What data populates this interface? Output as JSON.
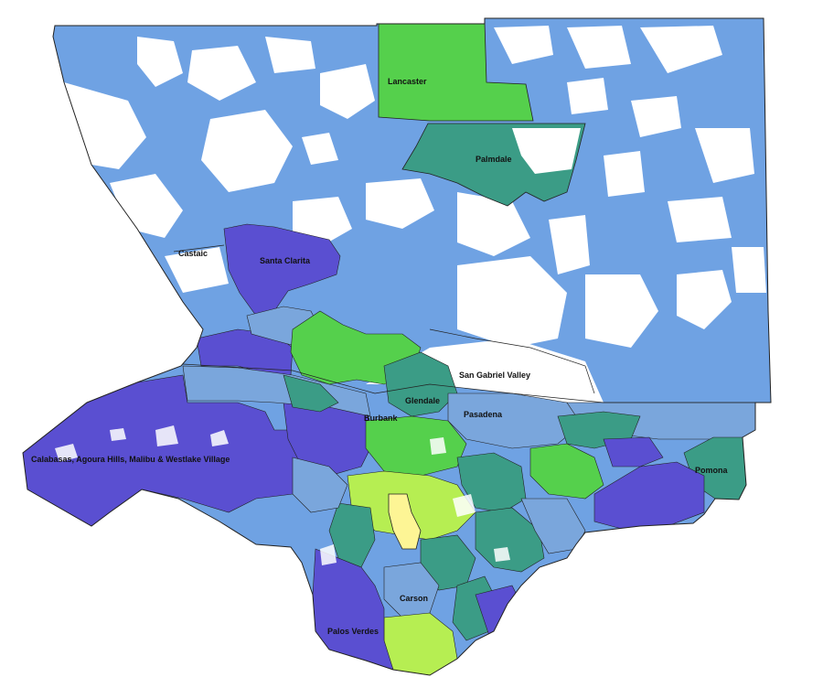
{
  "colors": {
    "background": "#ffffff",
    "light_blue": "#6fa2e3",
    "steel_blue": "#7aa6dc",
    "violet": "#5a4fd1",
    "teal": "#3b9c86",
    "green": "#55d04c",
    "lime": "#b6ee52",
    "yellow": "#fdf595",
    "border": "#222222"
  },
  "labels": {
    "lancaster": "Lancaster",
    "palmdale": "Palmdale",
    "castaic": "Castaic",
    "santa_clarita": "Santa Clarita",
    "san_gabriel_valley": "San Gabriel Valley",
    "glendale": "Glendale",
    "burbank": "Burbank",
    "pasadena": "Pasadena",
    "calabasas": "Calabasas, Agoura Hills, Malibu & Westlake Village",
    "pomona": "Pomona",
    "carson": "Carson",
    "palos_verdes": "Palos Verdes"
  }
}
